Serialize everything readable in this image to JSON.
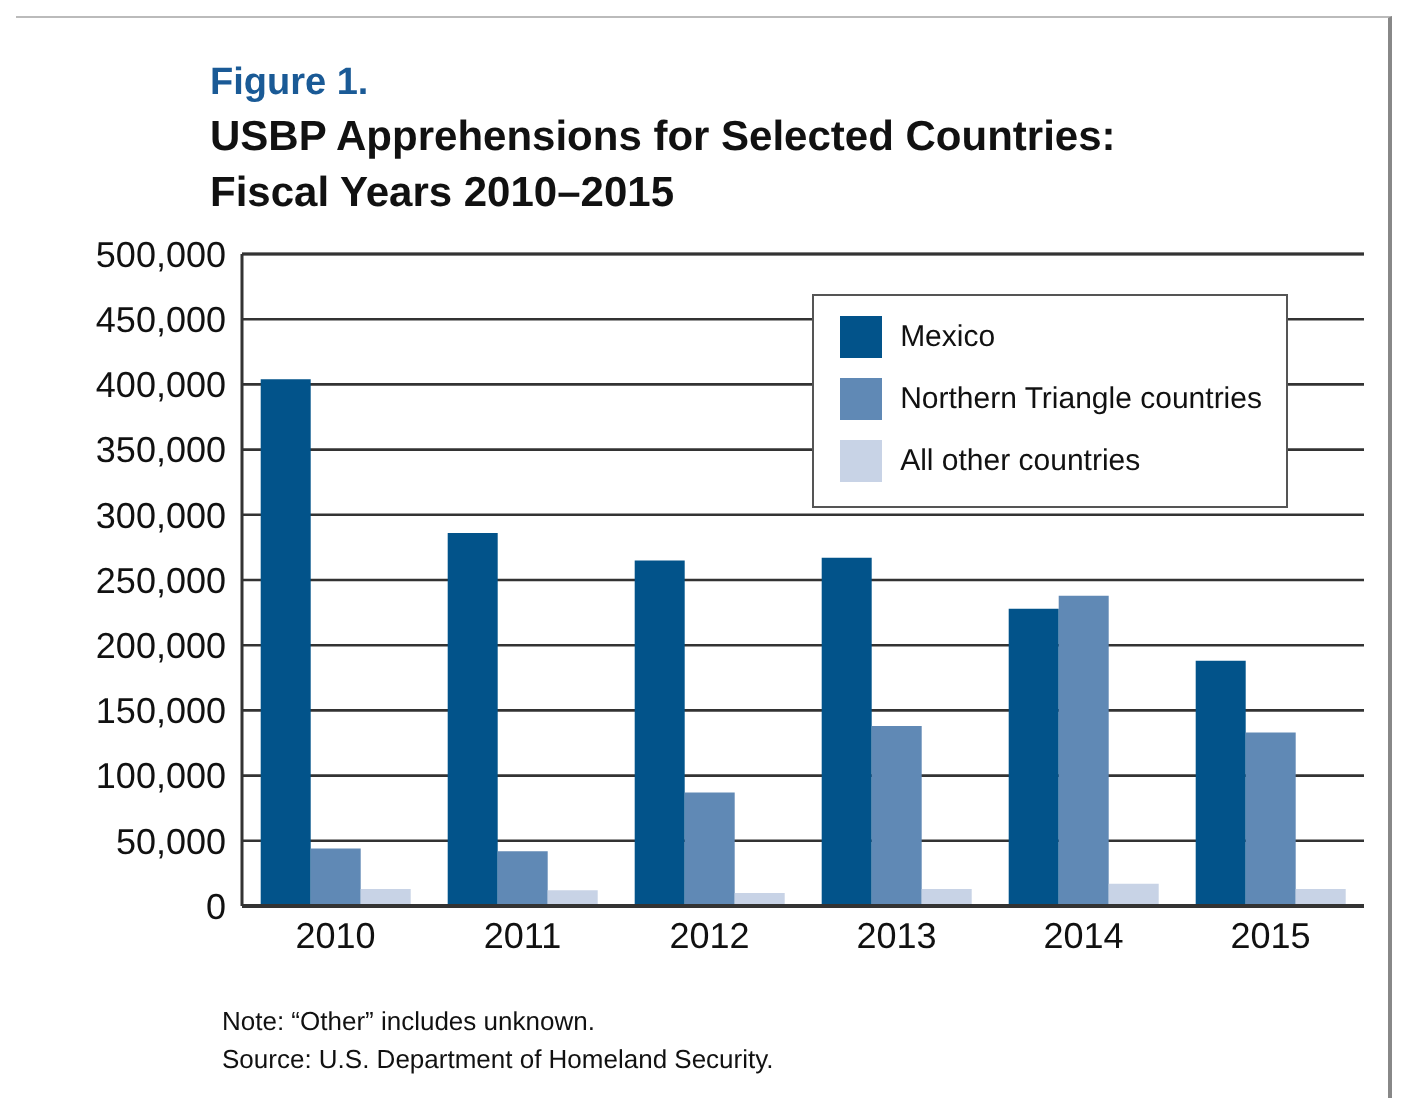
{
  "chart_data": {
    "type": "bar",
    "title": "Figure 1.",
    "subtitle": "USBP Apprehensions for Selected Countries: Fiscal Years 2010–2015",
    "categories": [
      "2010",
      "2011",
      "2012",
      "2013",
      "2014",
      "2015"
    ],
    "series": [
      {
        "name": "Mexico",
        "color": "#02538a",
        "values": [
          404000,
          286000,
          265000,
          267000,
          228000,
          188000
        ]
      },
      {
        "name": "Northern Triangle countries",
        "color": "#6089b5",
        "values": [
          44000,
          42000,
          87000,
          138000,
          238000,
          133000
        ]
      },
      {
        "name": "All other countries",
        "color": "#c8d3e6",
        "values": [
          13000,
          12000,
          10000,
          13000,
          17000,
          13000
        ]
      }
    ],
    "ylim": [
      0,
      500000
    ],
    "yticks": [
      {
        "value": 0,
        "label": "0"
      },
      {
        "value": 50000,
        "label": "50,000"
      },
      {
        "value": 100000,
        "label": "100,000"
      },
      {
        "value": 150000,
        "label": "150,000"
      },
      {
        "value": 200000,
        "label": "200,000"
      },
      {
        "value": 250000,
        "label": "250,000"
      },
      {
        "value": 300000,
        "label": "300,000"
      },
      {
        "value": 350000,
        "label": "350,000"
      },
      {
        "value": 400000,
        "label": "400,000"
      },
      {
        "value": 450000,
        "label": "450,000"
      },
      {
        "value": 500000,
        "label": "500,000"
      }
    ],
    "grid": "y",
    "legend": "top right",
    "annotations": [
      "Note: “Other” includes unknown.",
      "Source: U.S. Department of Homeland Security."
    ]
  }
}
